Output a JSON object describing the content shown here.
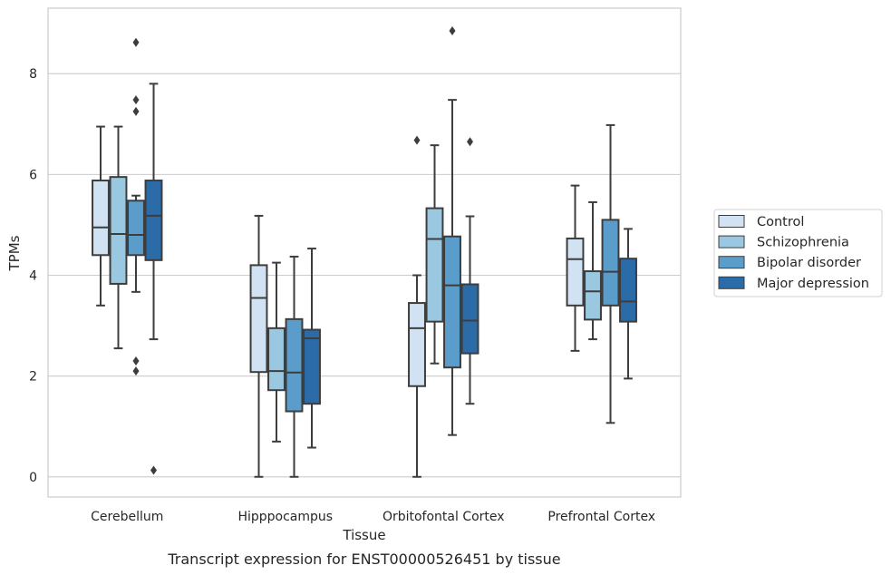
{
  "chart_data": {
    "type": "box",
    "caption": "Transcript expression for ENST00000526451 by tissue",
    "xlabel": "Tissue",
    "ylabel": "TPMs",
    "ylim": [
      -0.4,
      9.3
    ],
    "yticks": [
      0,
      2,
      4,
      6,
      8
    ],
    "grid": true,
    "legend_position": "right",
    "categories": [
      "Cerebellum",
      "Hipppocampus",
      "Orbitofontal Cortex",
      "Prefrontal Cortex"
    ],
    "series": [
      {
        "name": "Control",
        "color": "#d1e2f3",
        "boxes": [
          {
            "whisker_low": 3.4,
            "q1": 4.4,
            "median": 4.95,
            "q3": 5.88,
            "whisker_high": 6.95,
            "outliers": []
          },
          {
            "whisker_low": 0.0,
            "q1": 2.08,
            "median": 3.55,
            "q3": 4.2,
            "whisker_high": 5.18,
            "outliers": []
          },
          {
            "whisker_low": 0.0,
            "q1": 1.8,
            "median": 2.95,
            "q3": 3.45,
            "whisker_high": 4.0,
            "outliers": [
              6.68
            ]
          },
          {
            "whisker_low": 2.5,
            "q1": 3.4,
            "median": 4.32,
            "q3": 4.73,
            "whisker_high": 5.78,
            "outliers": []
          }
        ]
      },
      {
        "name": "Schizophrenia",
        "color": "#9ac8e0",
        "boxes": [
          {
            "whisker_low": 2.55,
            "q1": 3.83,
            "median": 4.82,
            "q3": 5.95,
            "whisker_high": 6.95,
            "outliers": []
          },
          {
            "whisker_low": 0.7,
            "q1": 1.72,
            "median": 2.1,
            "q3": 2.95,
            "whisker_high": 4.25,
            "outliers": []
          },
          {
            "whisker_low": 2.25,
            "q1": 3.08,
            "median": 4.72,
            "q3": 5.33,
            "whisker_high": 6.58,
            "outliers": []
          },
          {
            "whisker_low": 2.73,
            "q1": 3.12,
            "median": 3.68,
            "q3": 4.08,
            "whisker_high": 5.45,
            "outliers": []
          }
        ]
      },
      {
        "name": "Bipolar disorder",
        "color": "#5a9dcb",
        "boxes": [
          {
            "whisker_low": 3.67,
            "q1": 4.4,
            "median": 4.8,
            "q3": 5.48,
            "whisker_high": 5.58,
            "outliers": [
              8.62,
              7.48,
              7.25,
              2.3,
              2.1
            ]
          },
          {
            "whisker_low": 0.0,
            "q1": 1.3,
            "median": 2.07,
            "q3": 3.13,
            "whisker_high": 4.37,
            "outliers": []
          },
          {
            "whisker_low": 0.83,
            "q1": 2.17,
            "median": 3.8,
            "q3": 4.77,
            "whisker_high": 7.48,
            "outliers": [
              8.85
            ]
          },
          {
            "whisker_low": 1.07,
            "q1": 3.4,
            "median": 4.07,
            "q3": 5.1,
            "whisker_high": 6.98,
            "outliers": []
          }
        ]
      },
      {
        "name": "Major depression",
        "color": "#2b6ba8",
        "boxes": [
          {
            "whisker_low": 2.73,
            "q1": 4.3,
            "median": 5.18,
            "q3": 5.88,
            "whisker_high": 7.8,
            "outliers": [
              0.13
            ]
          },
          {
            "whisker_low": 0.58,
            "q1": 1.45,
            "median": 2.75,
            "q3": 2.92,
            "whisker_high": 4.53,
            "outliers": []
          },
          {
            "whisker_low": 1.45,
            "q1": 2.45,
            "median": 3.1,
            "q3": 3.82,
            "whisker_high": 5.17,
            "outliers": [
              6.65
            ]
          },
          {
            "whisker_low": 1.95,
            "q1": 3.08,
            "median": 3.48,
            "q3": 4.33,
            "whisker_high": 4.92,
            "outliers": []
          }
        ]
      }
    ]
  }
}
